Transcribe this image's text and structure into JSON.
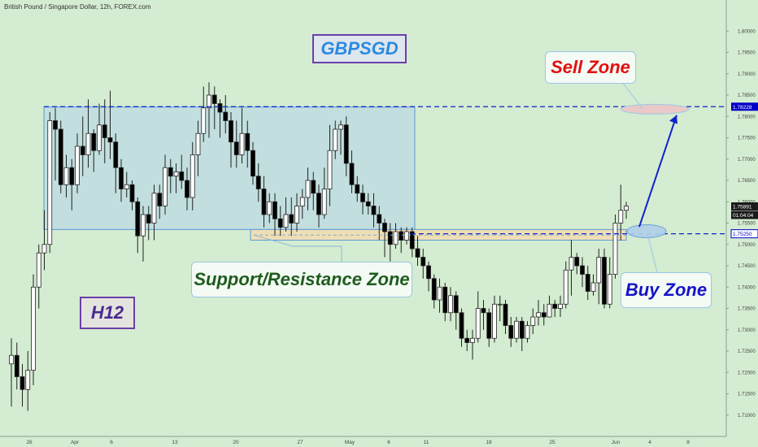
{
  "header": {
    "title": "British Pound / Singapore Dollar, 12h, FOREX.com"
  },
  "labels": {
    "symbol": "GBPSGD",
    "timeframe": "H12",
    "sell_zone": "Sell Zone",
    "sr_zone": "Support/Resistance Zone",
    "buy_zone": "Buy Zone"
  },
  "colors": {
    "background": "#d4ecd1",
    "candle_up": "#ffffff",
    "candle_down": "#000000",
    "range_box": "#bcd9e3",
    "sr_zone": "#f2ddb0",
    "line_blue": "#1122cc",
    "price_badge": "#0000c8"
  },
  "chart_data": {
    "type": "candlestick",
    "title": "British Pound / Singapore Dollar, 12h, FOREX.com",
    "ylim": [
      1.709,
      1.805
    ],
    "y_ticks": [
      1.8,
      1.795,
      1.79,
      1.785,
      1.78,
      1.775,
      1.77,
      1.765,
      1.76,
      1.755,
      1.75,
      1.745,
      1.74,
      1.735,
      1.73,
      1.725,
      1.72,
      1.715,
      1.71
    ],
    "y_tick_labels": [
      "1.80000",
      "1.79500",
      "1.79000",
      "1.78500",
      "1.78000",
      "1.77500",
      "1.77000",
      "1.76500",
      "1.76000",
      "1.75500",
      "1.75000",
      "1.74500",
      "1.74000",
      "1.73500",
      "1.73000",
      "1.72500",
      "1.72000",
      "1.71500",
      "1.71000"
    ],
    "x_ticks": [
      "26",
      "Apr",
      "6",
      "13",
      "20",
      "27",
      "May",
      "6",
      "11",
      "18",
      "25",
      "Jun",
      "4",
      "8"
    ],
    "price_labels": [
      {
        "value": 1.78228,
        "text": "1.78228",
        "style": "badge"
      },
      {
        "value": 1.75891,
        "text": "1.75891",
        "style": "dark"
      },
      {
        "value": 1.7569,
        "text": "01:04:04",
        "style": "dark"
      },
      {
        "value": 1.7525,
        "text": "1.75250",
        "style": "outline"
      }
    ],
    "levels": [
      {
        "name": "Sell level",
        "value": 1.78228
      },
      {
        "name": "Buy level",
        "value": 1.7525
      }
    ],
    "zones": [
      {
        "name": "Range",
        "top": 1.7822,
        "bottom": 1.7535
      },
      {
        "name": "Support/Resistance Zone",
        "top": 1.7535,
        "bottom": 1.751
      }
    ],
    "candles": [
      [
        1.722,
        1.724,
        1.712,
        1.728
      ],
      [
        1.724,
        1.719,
        1.716,
        1.727
      ],
      [
        1.719,
        1.716,
        1.712,
        1.722
      ],
      [
        1.716,
        1.7205,
        1.711,
        1.725
      ],
      [
        1.7205,
        1.74,
        1.717,
        1.743
      ],
      [
        1.74,
        1.748,
        1.735,
        1.75
      ],
      [
        1.748,
        1.75,
        1.744,
        1.758
      ],
      [
        1.75,
        1.779,
        1.748,
        1.781
      ],
      [
        1.779,
        1.777,
        1.765,
        1.782
      ],
      [
        1.777,
        1.764,
        1.762,
        1.779
      ],
      [
        1.764,
        1.768,
        1.761,
        1.771
      ],
      [
        1.768,
        1.764,
        1.758,
        1.77
      ],
      [
        1.764,
        1.773,
        1.762,
        1.776
      ],
      [
        1.773,
        1.771,
        1.766,
        1.78
      ],
      [
        1.771,
        1.776,
        1.768,
        1.784
      ],
      [
        1.776,
        1.772,
        1.767,
        1.777
      ],
      [
        1.772,
        1.778,
        1.771,
        1.783
      ],
      [
        1.778,
        1.775,
        1.769,
        1.784
      ],
      [
        1.775,
        1.774,
        1.77,
        1.786
      ],
      [
        1.774,
        1.768,
        1.762,
        1.776
      ],
      [
        1.768,
        1.763,
        1.76,
        1.77
      ],
      [
        1.763,
        1.764,
        1.761,
        1.767
      ],
      [
        1.764,
        1.76,
        1.758,
        1.765
      ],
      [
        1.76,
        1.752,
        1.748,
        1.761
      ],
      [
        1.752,
        1.757,
        1.746,
        1.759
      ],
      [
        1.757,
        1.755,
        1.751,
        1.759
      ],
      [
        1.755,
        1.762,
        1.751,
        1.764
      ],
      [
        1.762,
        1.759,
        1.756,
        1.764
      ],
      [
        1.759,
        1.768,
        1.757,
        1.771
      ],
      [
        1.768,
        1.766,
        1.762,
        1.77
      ],
      [
        1.766,
        1.767,
        1.762,
        1.769
      ],
      [
        1.767,
        1.765,
        1.763,
        1.771
      ],
      [
        1.765,
        1.761,
        1.758,
        1.768
      ],
      [
        1.761,
        1.771,
        1.758,
        1.774
      ],
      [
        1.771,
        1.776,
        1.766,
        1.779
      ],
      [
        1.776,
        1.782,
        1.774,
        1.787
      ],
      [
        1.782,
        1.785,
        1.775,
        1.788
      ],
      [
        1.785,
        1.783,
        1.777,
        1.787
      ],
      [
        1.783,
        1.781,
        1.775,
        1.784
      ],
      [
        1.781,
        1.779,
        1.776,
        1.785
      ],
      [
        1.779,
        1.774,
        1.768,
        1.781
      ],
      [
        1.774,
        1.771,
        1.768,
        1.779
      ],
      [
        1.771,
        1.776,
        1.769,
        1.782
      ],
      [
        1.776,
        1.772,
        1.768,
        1.779
      ],
      [
        1.772,
        1.766,
        1.764,
        1.774
      ],
      [
        1.766,
        1.763,
        1.76,
        1.769
      ],
      [
        1.763,
        1.757,
        1.754,
        1.766
      ],
      [
        1.757,
        1.76,
        1.755,
        1.762
      ],
      [
        1.76,
        1.756,
        1.752,
        1.762
      ],
      [
        1.756,
        1.754,
        1.752,
        1.759
      ],
      [
        1.754,
        1.757,
        1.753,
        1.761
      ],
      [
        1.757,
        1.755,
        1.752,
        1.761
      ],
      [
        1.755,
        1.759,
        1.753,
        1.762
      ],
      [
        1.759,
        1.761,
        1.756,
        1.763
      ],
      [
        1.761,
        1.765,
        1.758,
        1.768
      ],
      [
        1.765,
        1.762,
        1.758,
        1.767
      ],
      [
        1.762,
        1.757,
        1.754,
        1.764
      ],
      [
        1.757,
        1.763,
        1.756,
        1.768
      ],
      [
        1.763,
        1.772,
        1.759,
        1.778
      ],
      [
        1.772,
        1.777,
        1.77,
        1.779
      ],
      [
        1.777,
        1.778,
        1.771,
        1.779
      ],
      [
        1.778,
        1.769,
        1.766,
        1.78
      ],
      [
        1.769,
        1.764,
        1.762,
        1.772
      ],
      [
        1.764,
        1.762,
        1.76,
        1.766
      ],
      [
        1.762,
        1.76,
        1.757,
        1.764
      ],
      [
        1.76,
        1.759,
        1.757,
        1.762
      ],
      [
        1.759,
        1.757,
        1.754,
        1.762
      ],
      [
        1.757,
        1.755,
        1.751,
        1.759
      ],
      [
        1.755,
        1.753,
        1.747,
        1.756
      ],
      [
        1.753,
        1.75,
        1.746,
        1.755
      ],
      [
        1.75,
        1.753,
        1.749,
        1.755
      ],
      [
        1.753,
        1.751,
        1.748,
        1.754
      ],
      [
        1.751,
        1.753,
        1.75,
        1.754
      ],
      [
        1.753,
        1.749,
        1.747,
        1.754
      ],
      [
        1.749,
        1.747,
        1.745,
        1.752
      ],
      [
        1.747,
        1.745,
        1.742,
        1.749
      ],
      [
        1.745,
        1.742,
        1.739,
        1.746
      ],
      [
        1.742,
        1.737,
        1.735,
        1.743
      ],
      [
        1.737,
        1.74,
        1.734,
        1.742
      ],
      [
        1.74,
        1.734,
        1.732,
        1.741
      ],
      [
        1.734,
        1.738,
        1.732,
        1.74
      ],
      [
        1.738,
        1.734,
        1.73,
        1.739
      ],
      [
        1.734,
        1.728,
        1.726,
        1.735
      ],
      [
        1.728,
        1.727,
        1.725,
        1.73
      ],
      [
        1.727,
        1.728,
        1.723,
        1.73
      ],
      [
        1.728,
        1.735,
        1.727,
        1.739
      ],
      [
        1.735,
        1.734,
        1.73,
        1.737
      ],
      [
        1.734,
        1.728,
        1.726,
        1.735
      ],
      [
        1.728,
        1.736,
        1.727,
        1.738
      ],
      [
        1.736,
        1.736,
        1.732,
        1.738
      ],
      [
        1.736,
        1.731,
        1.729,
        1.737
      ],
      [
        1.731,
        1.728,
        1.726,
        1.733
      ],
      [
        1.728,
        1.732,
        1.727,
        1.733
      ],
      [
        1.732,
        1.728,
        1.725,
        1.733
      ],
      [
        1.728,
        1.731,
        1.727,
        1.732
      ],
      [
        1.731,
        1.733,
        1.729,
        1.735
      ],
      [
        1.733,
        1.734,
        1.731,
        1.737
      ],
      [
        1.734,
        1.733,
        1.731,
        1.736
      ],
      [
        1.733,
        1.736,
        1.733,
        1.738
      ],
      [
        1.736,
        1.735,
        1.733,
        1.737
      ],
      [
        1.735,
        1.736,
        1.733,
        1.738
      ],
      [
        1.736,
        1.744,
        1.735,
        1.746
      ],
      [
        1.744,
        1.747,
        1.738,
        1.751
      ],
      [
        1.747,
        1.745,
        1.743,
        1.748
      ],
      [
        1.745,
        1.743,
        1.74,
        1.747
      ],
      [
        1.743,
        1.739,
        1.737,
        1.745
      ],
      [
        1.739,
        1.741,
        1.738,
        1.743
      ],
      [
        1.741,
        1.747,
        1.736,
        1.749
      ],
      [
        1.747,
        1.736,
        1.735,
        1.749
      ],
      [
        1.736,
        1.743,
        1.735,
        1.747
      ],
      [
        1.743,
        1.755,
        1.742,
        1.757
      ],
      [
        1.755,
        1.758,
        1.751,
        1.764
      ],
      [
        1.758,
        1.759,
        1.756,
        1.76
      ]
    ],
    "annotations": [
      "GBPSGD",
      "H12",
      "Sell Zone",
      "Support/Resistance Zone",
      "Buy Zone"
    ]
  }
}
